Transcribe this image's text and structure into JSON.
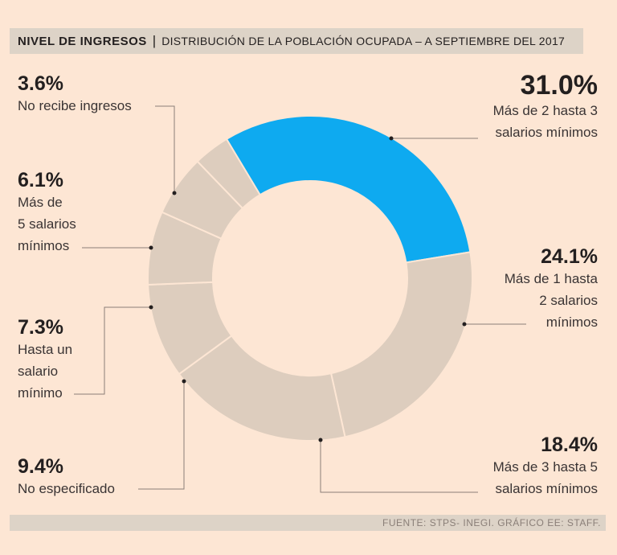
{
  "header": {
    "title": "NIVEL DE INGRESOS",
    "separator": "|",
    "subtitle": "DISTRIBUCIÓN DE LA POBLACIÓN OCUPADA – A SEPTIEMBRE DEL 2017"
  },
  "footer": {
    "source": "FUENTE: STPS- INEGI. GRÁFICO EE: STAFF."
  },
  "colors": {
    "highlight": "#0eaaf0",
    "slice": "#ddcdbe",
    "divider": "#fde6d4",
    "background": "#fde6d4",
    "line": "#8a7f78"
  },
  "chart_data": {
    "type": "pie",
    "title": "NIVEL DE INGRESOS | DISTRIBUCIÓN DE LA POBLACIÓN OCUPADA – A SEPTIEMBRE DEL 2017",
    "unit": "%",
    "slices": [
      {
        "label": "Más de 2 hasta 3 salarios mínimos",
        "value": 31.0,
        "display": "31.0%",
        "highlight": true
      },
      {
        "label": "Más de 1 hasta 2 salarios mínimos",
        "value": 24.1,
        "display": "24.1%",
        "highlight": false
      },
      {
        "label": "Más de 3 hasta 5 salarios mínimos",
        "value": 18.4,
        "display": "18.4%",
        "highlight": false
      },
      {
        "label": "No especificado",
        "value": 9.4,
        "display": "9.4%",
        "highlight": false
      },
      {
        "label": "Hasta un salario mínimo",
        "value": 7.3,
        "display": "7.3%",
        "highlight": false
      },
      {
        "label": "Más de 5 salarios mínimos",
        "value": 6.1,
        "display": "6.1%",
        "highlight": false
      },
      {
        "label": "No recibe ingresos",
        "value": 3.6,
        "display": "3.6%",
        "highlight": false
      }
    ]
  },
  "labels": [
    {
      "pct": "31.0%",
      "text": "Más de 2 hasta 3\nsalarios mínimos"
    },
    {
      "pct": "24.1%",
      "text": "Más de 1 hasta\n2 salarios\nmínimos"
    },
    {
      "pct": "18.4%",
      "text": "Más de 3 hasta 5\nsalarios mínimos"
    },
    {
      "pct": "9.4%",
      "text": "No especificado"
    },
    {
      "pct": "7.3%",
      "text": "Hasta un\nsalario\nmínimo"
    },
    {
      "pct": "6.1%",
      "text": "Más de\n5 salarios\nmínimos"
    },
    {
      "pct": "3.6%",
      "text": "No recibe ingresos"
    }
  ]
}
